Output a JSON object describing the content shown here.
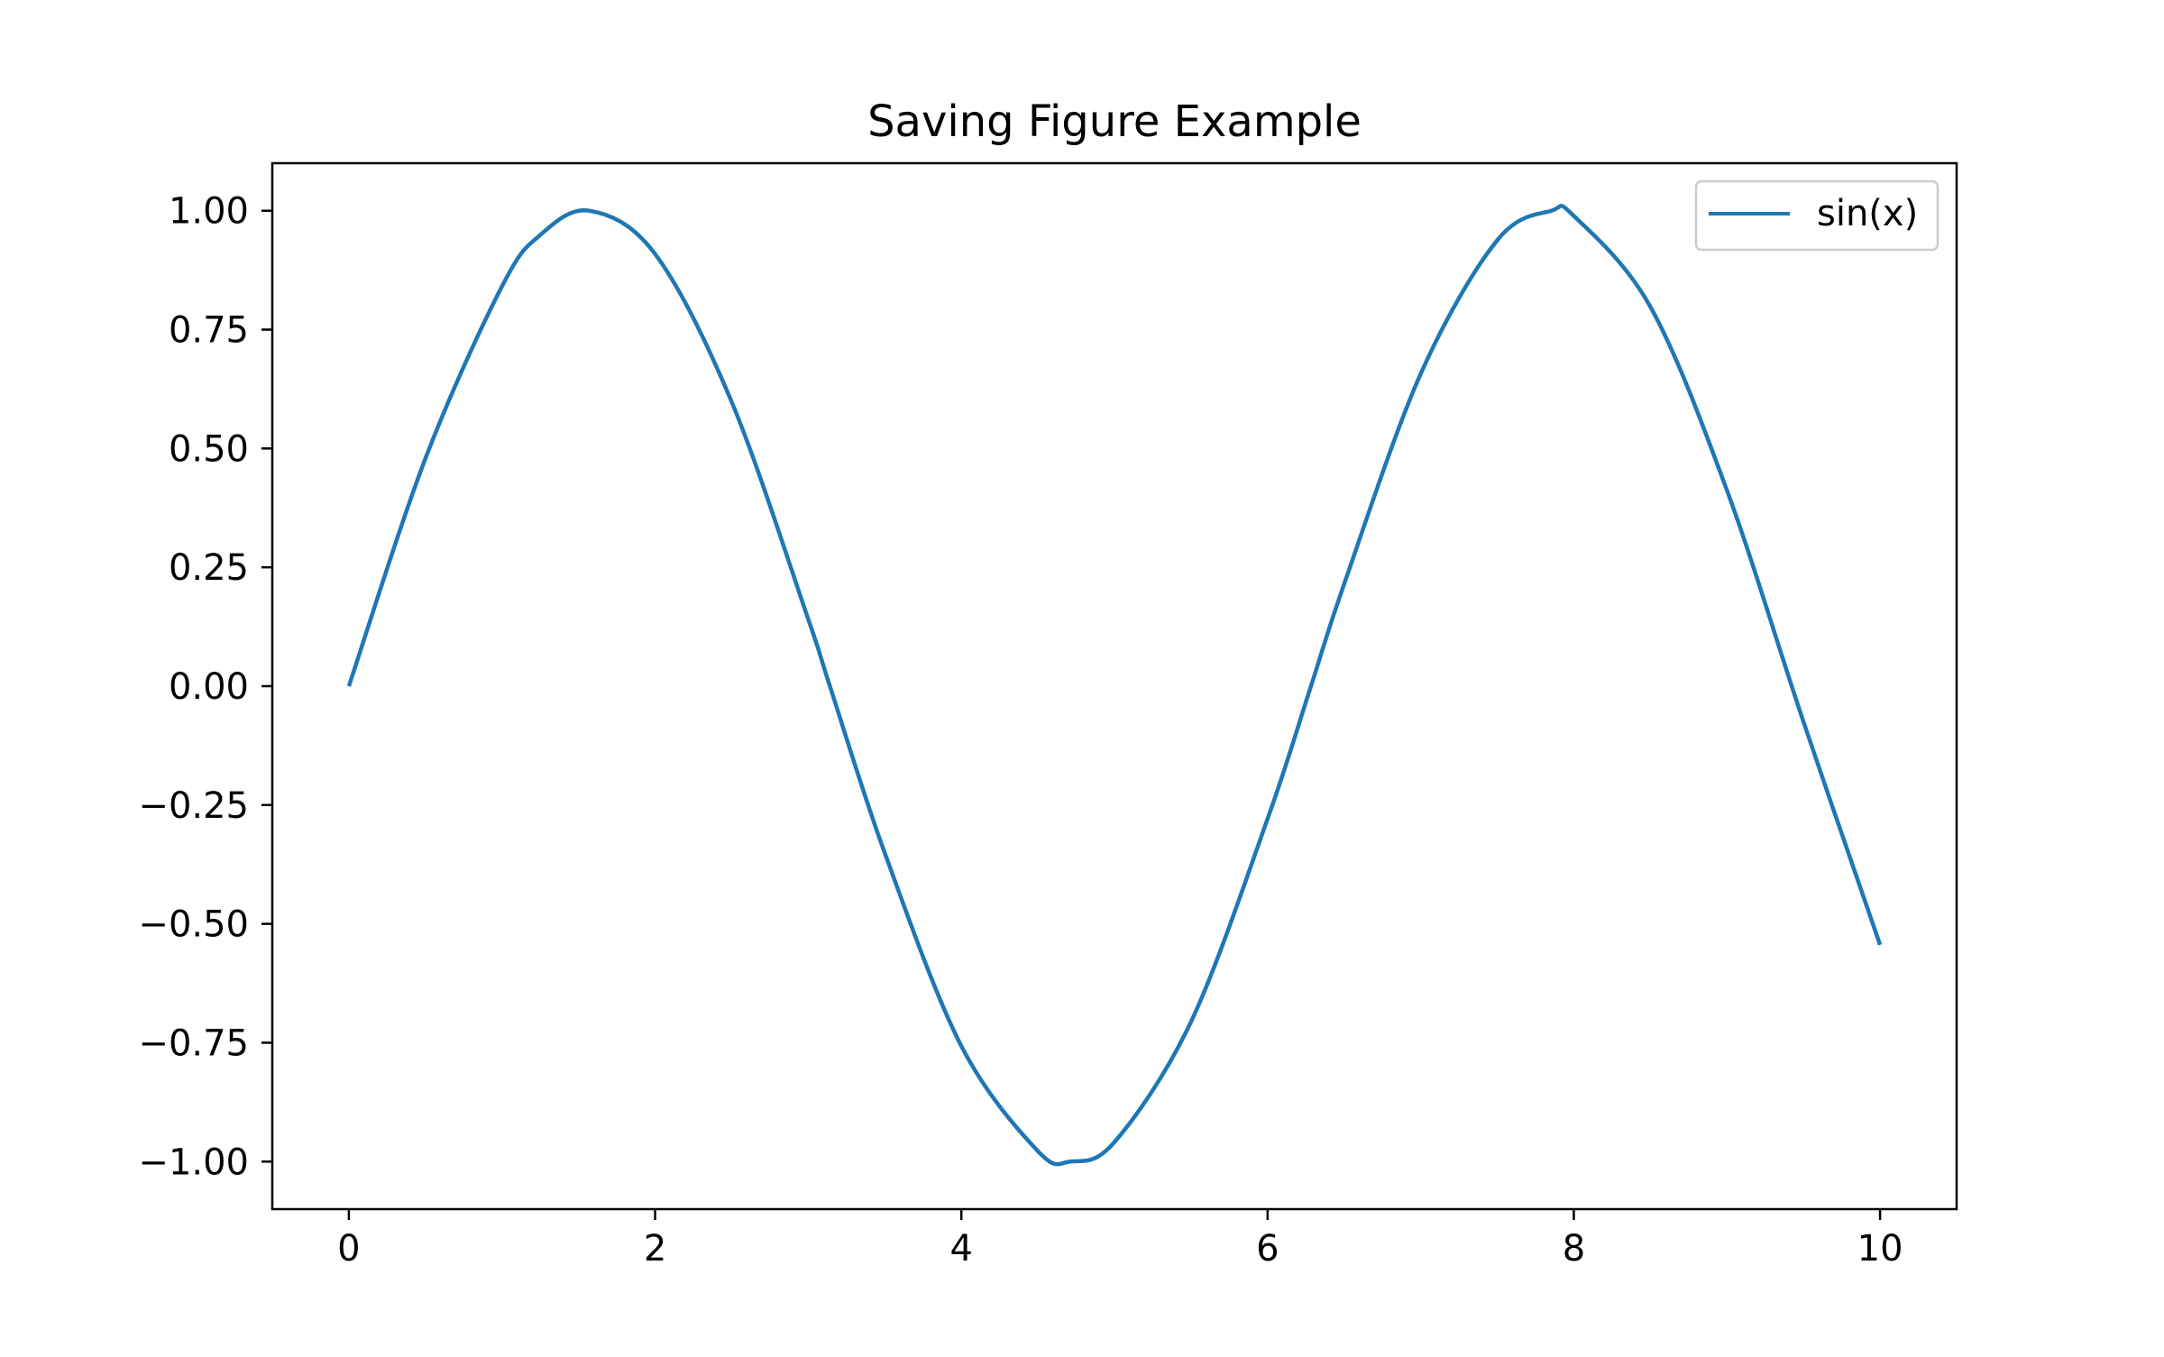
{
  "chart_data": {
    "type": "line",
    "title": "Saving Figure Example",
    "xlabel": "",
    "ylabel": "",
    "xlim": [
      -0.5,
      10.5
    ],
    "ylim": [
      -1.1,
      1.1
    ],
    "grid": false,
    "legend_position": "top-right",
    "x_ticks": [
      0,
      2,
      4,
      6,
      8,
      10
    ],
    "x_tick_labels": [
      "0",
      "2",
      "4",
      "6",
      "8",
      "10"
    ],
    "y_ticks": [
      1.0,
      0.75,
      0.5,
      0.25,
      0.0,
      -0.25,
      -0.5,
      -0.75,
      -1.0
    ],
    "y_tick_labels": [
      "1.00",
      "0.75",
      "0.50",
      "0.25",
      "0.00",
      "−0.25",
      "−0.50",
      "−0.75",
      "−1.00"
    ],
    "series": [
      {
        "name": "sin(x)",
        "color": "#1f77b4",
        "x": [
          0.0,
          0.5,
          1.0,
          1.25,
          1.5708,
          2.0,
          2.5,
          3.0,
          3.1416,
          3.5,
          4.0,
          4.5,
          4.7124,
          5.0,
          5.5,
          6.0,
          6.2832,
          6.5,
          7.0,
          7.5,
          7.854,
          8.0,
          8.5,
          9.0,
          9.5,
          10.0
        ],
        "y": [
          0.0,
          0.479,
          0.841,
          0.949,
          1.0,
          0.909,
          0.598,
          0.141,
          0.0,
          -0.351,
          -0.757,
          -0.978,
          -1.0,
          -0.959,
          -0.706,
          -0.279,
          0.0,
          0.215,
          0.657,
          0.938,
          1.0,
          0.989,
          0.798,
          0.412,
          -0.075,
          -0.544
        ]
      }
    ]
  }
}
